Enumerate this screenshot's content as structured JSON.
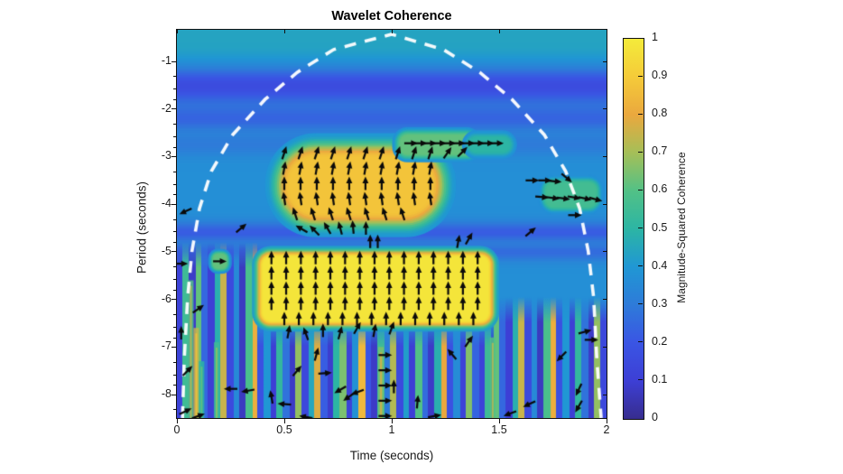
{
  "title": "Wavelet Coherence",
  "axes": {
    "xlabel": "Time (seconds)",
    "ylabel": "Period (seconds)",
    "x_ticks": [
      {
        "v": 0,
        "label": "0"
      },
      {
        "v": 0.5,
        "label": "0.5"
      },
      {
        "v": 1,
        "label": "1"
      },
      {
        "v": 1.5,
        "label": "1.5"
      },
      {
        "v": 2,
        "label": "2"
      }
    ],
    "y_ticks": [
      {
        "v": -1,
        "label": "-1"
      },
      {
        "v": -2,
        "label": "-2"
      },
      {
        "v": -3,
        "label": "-3"
      },
      {
        "v": -4,
        "label": "-4"
      },
      {
        "v": -5,
        "label": "-5"
      },
      {
        "v": -6,
        "label": "-6"
      },
      {
        "v": -7,
        "label": "-7"
      },
      {
        "v": -8,
        "label": "-8"
      }
    ],
    "x_range": [
      0,
      2
    ],
    "p_top": -0.336,
    "p_bottom": -8.493,
    "minor_tick_offsets": [
      0.322,
      0.585,
      0.807
    ]
  },
  "colorbar": {
    "label": "Magnitude-Squared Coherence",
    "tick_values": [
      0,
      0.1,
      0.2,
      0.3,
      0.4,
      0.5,
      0.6,
      0.7,
      0.8,
      0.9,
      1
    ],
    "tick_labels": [
      "0",
      "0.1",
      "0.2",
      "0.3",
      "0.4",
      "0.5",
      "0.6",
      "0.7",
      "0.8",
      "0.9",
      "1"
    ],
    "stops": [
      [
        0,
        "#372d8e"
      ],
      [
        0.1,
        "#3d3fd5"
      ],
      [
        0.2,
        "#3a55e4"
      ],
      [
        0.3,
        "#2e7bd9"
      ],
      [
        0.4,
        "#2097d4"
      ],
      [
        0.5,
        "#2cb5a4"
      ],
      [
        0.6,
        "#52c186"
      ],
      [
        0.7,
        "#a5bf58"
      ],
      [
        0.8,
        "#eaa83e"
      ],
      [
        0.9,
        "#f5cb39"
      ],
      [
        1,
        "#f4eb3a"
      ]
    ]
  },
  "chart_data": {
    "type": "heatmap",
    "title": "Wavelet Coherence",
    "xlabel": "Time (seconds)",
    "ylabel": "Period (seconds)",
    "value_label": "Magnitude-Squared Coherence",
    "value_range": [
      0,
      1
    ],
    "base_value_top": 0.44,
    "base_value_mid": 0.37,
    "bands": [
      {
        "p": -1.51,
        "v": 0.16,
        "w": 15
      },
      {
        "p": -2.18,
        "v": 0.24,
        "w": 11
      },
      {
        "p": -2.73,
        "v": 0.3,
        "w": 9
      },
      {
        "p": -4.58,
        "v": 0.22,
        "w": 8
      },
      {
        "p": -5.0,
        "v": 0.26,
        "w": 7
      }
    ],
    "regions": [
      {
        "name": "high-coherence-blob-upper",
        "t0": 0.52,
        "t1": 1.19,
        "p0": -3.0,
        "p1": -4.2,
        "v": 0.88,
        "vEdge": 0.4,
        "feather": 26,
        "r": 30
      },
      {
        "name": "coherence-streak-top-right",
        "t0": 1.04,
        "t1": 1.38,
        "p0": -2.55,
        "p1": -2.95,
        "v": 0.62,
        "vEdge": 0.38,
        "feather": 9,
        "r": 8
      },
      {
        "name": "coherence-streak-top-right-fade",
        "t0": 1.36,
        "t1": 1.55,
        "p0": -2.6,
        "p1": -2.9,
        "v": 0.5,
        "vEdge": 0.38,
        "feather": 8,
        "r": 8
      },
      {
        "name": "high-coherence-rect-lower",
        "t0": 0.4,
        "t1": 1.45,
        "p0": -5.1,
        "p1": -6.45,
        "v": 0.98,
        "vEdge": 0.42,
        "feather": 12,
        "r": 9
      },
      {
        "name": "right-side-patch",
        "t0": 1.72,
        "t1": 1.95,
        "p0": -3.55,
        "p1": -4.05,
        "v": 0.56,
        "vEdge": 0.37,
        "feather": 9,
        "r": 8
      },
      {
        "name": "small-green-spot-left",
        "t0": 0.17,
        "t1": 0.23,
        "p0": -5.05,
        "p1": -5.35,
        "v": 0.62,
        "vEdge": 0.36,
        "feather": 6,
        "r": 5
      }
    ],
    "stripe_values": [
      0.12,
      0.55,
      0.08,
      0.62,
      0.25,
      0.1,
      0.48,
      0.75,
      0.15,
      0.35,
      0.07,
      0.58,
      0.82,
      0.18,
      0.4,
      0.1,
      0.52,
      0.28,
      0.08,
      0.68,
      0.14,
      0.45,
      0.78,
      0.22,
      0.09,
      0.5,
      0.65,
      0.12,
      0.38,
      0.85,
      0.2,
      0.08,
      0.55,
      0.3,
      0.72,
      0.15,
      0.42,
      0.1,
      0.6,
      0.26,
      0.08,
      0.48,
      0.8,
      0.18,
      0.36,
      0.12,
      0.66,
      0.24
    ],
    "stripe_regions": [
      {
        "t0": 0.0,
        "t1": 0.374,
        "p_top": -4.8,
        "offset": 0
      },
      {
        "t0": 0.374,
        "t1": 1.475,
        "p_top": -6.45,
        "offset": 13
      },
      {
        "t0": 1.475,
        "t1": 2.0,
        "p_top": -5.95,
        "offset": 3
      }
    ],
    "bright_streaks": [
      {
        "t": 0.065,
        "p0": -5.6,
        "p1": -8.49,
        "v": 0.6
      },
      {
        "t": 0.09,
        "p0": -6.6,
        "p1": -8.49,
        "v": 0.75
      },
      {
        "t": 0.115,
        "p0": -7.3,
        "p1": -8.49,
        "v": 0.5
      },
      {
        "t": 0.185,
        "p0": -6.9,
        "p1": -8.49,
        "v": 0.55
      },
      {
        "t": 0.95,
        "p0": -7.0,
        "p1": -8.49,
        "v": 0.65
      },
      {
        "t": 1.47,
        "p0": -6.8,
        "p1": -8.49,
        "v": 0.6
      }
    ],
    "coi": [
      [
        0.026,
        -8.49
      ],
      [
        0.034,
        -7.27
      ],
      [
        0.05,
        -5.96
      ],
      [
        0.07,
        -4.99
      ],
      [
        0.105,
        -4.09
      ],
      [
        0.16,
        -3.31
      ],
      [
        0.26,
        -2.54
      ],
      [
        0.41,
        -1.8
      ],
      [
        0.56,
        -1.23
      ],
      [
        0.73,
        -0.75
      ],
      [
        1.0,
        -0.43
      ],
      [
        1.24,
        -0.75
      ],
      [
        1.41,
        -1.23
      ],
      [
        1.56,
        -1.8
      ],
      [
        1.71,
        -2.54
      ],
      [
        1.81,
        -3.31
      ],
      [
        1.875,
        -4.09
      ],
      [
        1.915,
        -4.99
      ],
      [
        1.94,
        -5.96
      ],
      [
        1.955,
        -7.27
      ],
      [
        1.975,
        -8.49
      ]
    ],
    "arrow_grids": [
      {
        "name": "upper-blob-arrows",
        "rows": [
          {
            "p": -2.92,
            "a": 72,
            "t0": 0.5,
            "t1": 1.18,
            "n": 10
          },
          {
            "p": -3.24,
            "a": 80,
            "t0": 0.5,
            "t1": 1.18,
            "n": 10
          },
          {
            "p": -3.56,
            "a": 90,
            "t0": 0.5,
            "t1": 1.18,
            "n": 10
          },
          {
            "p": -3.88,
            "a": 98,
            "t0": 0.5,
            "t1": 1.18,
            "n": 10
          },
          {
            "p": -4.2,
            "a": 108,
            "t0": 0.55,
            "t1": 1.05,
            "n": 7
          }
        ]
      },
      {
        "name": "top-right-row-arrows",
        "rows": [
          {
            "p": -2.72,
            "a": 0,
            "t0": 1.09,
            "t1": 1.49,
            "n": 10
          }
        ]
      },
      {
        "name": "lower-rect-arrows",
        "rows": [
          {
            "p": -5.12,
            "a": 90,
            "t0": 0.44,
            "t1": 1.4,
            "n": 15
          },
          {
            "p": -5.44,
            "a": 90,
            "t0": 0.44,
            "t1": 1.4,
            "n": 15
          },
          {
            "p": -5.76,
            "a": 90,
            "t0": 0.44,
            "t1": 1.4,
            "n": 15
          },
          {
            "p": -6.08,
            "a": 90,
            "t0": 0.44,
            "t1": 1.4,
            "n": 15
          },
          {
            "p": -6.4,
            "a": 90,
            "t0": 0.5,
            "t1": 1.38,
            "n": 14
          }
        ]
      }
    ],
    "arrows_scatter": [
      [
        0.04,
        -4.15,
        205
      ],
      [
        0.3,
        -4.5,
        40
      ],
      [
        0.02,
        -5.25,
        0
      ],
      [
        0.2,
        -5.2,
        0
      ],
      [
        0.1,
        -6.2,
        35
      ],
      [
        0.02,
        -6.7,
        90
      ],
      [
        0.05,
        -7.5,
        45
      ],
      [
        0.04,
        -8.35,
        25
      ],
      [
        0.25,
        -7.88,
        180
      ],
      [
        0.33,
        -7.92,
        190
      ],
      [
        0.44,
        -8.05,
        100
      ],
      [
        0.5,
        -8.2,
        175
      ],
      [
        0.56,
        -7.5,
        50
      ],
      [
        0.65,
        -7.15,
        75
      ],
      [
        0.69,
        -7.55,
        5
      ],
      [
        0.76,
        -7.9,
        210
      ],
      [
        0.8,
        -8.05,
        215
      ],
      [
        0.84,
        -7.95,
        200
      ],
      [
        0.97,
        -7.17,
        0
      ],
      [
        0.97,
        -7.49,
        0
      ],
      [
        0.97,
        -7.81,
        0
      ],
      [
        0.97,
        -8.13,
        0
      ],
      [
        0.97,
        -8.45,
        0
      ],
      [
        1.01,
        -7.83,
        90
      ],
      [
        1.12,
        -8.15,
        85
      ],
      [
        1.28,
        -7.15,
        130
      ],
      [
        1.36,
        -6.88,
        55
      ],
      [
        1.79,
        -7.2,
        225
      ],
      [
        1.9,
        -6.68,
        15
      ],
      [
        1.93,
        -6.85,
        0
      ],
      [
        1.87,
        -7.9,
        245
      ],
      [
        1.87,
        -8.25,
        240
      ],
      [
        1.64,
        -8.2,
        205
      ],
      [
        0.52,
        -6.68,
        80
      ],
      [
        0.6,
        -6.72,
        110
      ],
      [
        0.68,
        -6.65,
        90
      ],
      [
        0.76,
        -6.7,
        75
      ],
      [
        0.84,
        -6.6,
        60
      ],
      [
        0.92,
        -6.65,
        80
      ],
      [
        1.0,
        -6.6,
        70
      ],
      [
        0.9,
        -4.78,
        90
      ],
      [
        0.935,
        -4.78,
        90
      ],
      [
        1.31,
        -4.78,
        80
      ],
      [
        1.36,
        -4.72,
        60
      ],
      [
        0.58,
        -4.52,
        150
      ],
      [
        0.64,
        -4.55,
        135
      ],
      [
        0.7,
        -4.5,
        120
      ],
      [
        0.76,
        -4.5,
        105
      ],
      [
        0.82,
        -4.48,
        95
      ],
      [
        0.88,
        -4.5,
        90
      ],
      [
        1.655,
        -3.5,
        0
      ],
      [
        1.714,
        -3.5,
        0
      ],
      [
        1.76,
        -3.52,
        -5
      ],
      [
        1.815,
        -3.45,
        -40
      ],
      [
        1.7,
        -3.85,
        -5
      ],
      [
        1.75,
        -3.87,
        -8
      ],
      [
        1.8,
        -3.88,
        -8
      ],
      [
        1.85,
        -3.86,
        -10
      ],
      [
        1.9,
        -3.88,
        -12
      ],
      [
        1.95,
        -3.9,
        -15
      ],
      [
        1.853,
        -4.23,
        0
      ],
      [
        1.647,
        -4.58,
        40
      ],
      [
        1.26,
        -2.92,
        55
      ],
      [
        1.33,
        -2.9,
        45
      ],
      [
        0.1,
        -8.45,
        20
      ],
      [
        0.6,
        -8.47,
        170
      ],
      [
        1.2,
        -8.45,
        10
      ],
      [
        1.55,
        -8.4,
        200
      ]
    ],
    "coi_color": "#ffffff",
    "arrow_color": "#0a0a0a"
  }
}
